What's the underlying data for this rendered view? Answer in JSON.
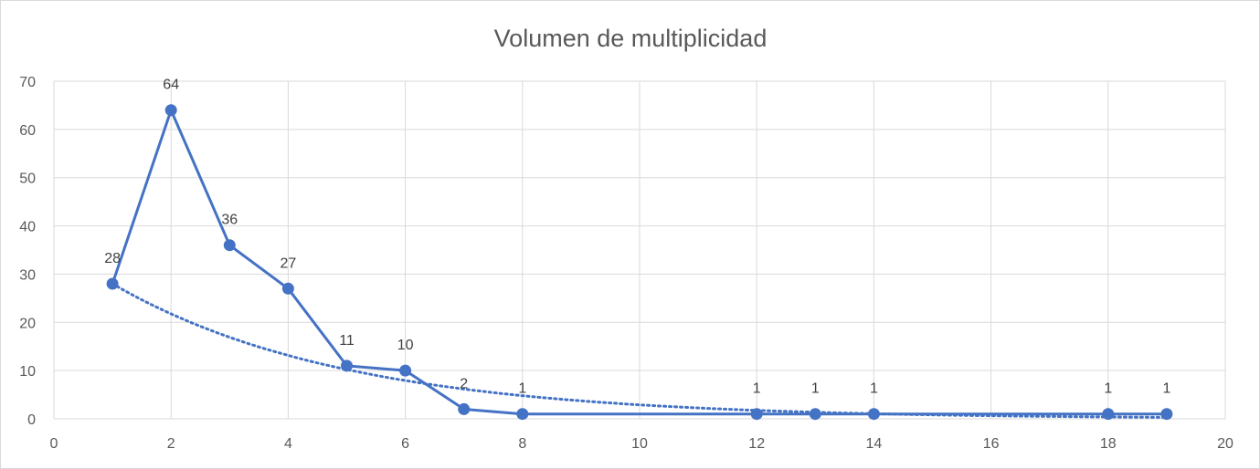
{
  "chart_data": {
    "type": "scatter",
    "title": "Volumen de multiplicidad",
    "xlabel": "",
    "ylabel": "",
    "xlim": [
      0,
      20
    ],
    "ylim": [
      0,
      70
    ],
    "x_ticks": [
      0,
      2,
      4,
      6,
      8,
      10,
      12,
      14,
      16,
      18,
      20
    ],
    "y_ticks": [
      0,
      10,
      20,
      30,
      40,
      50,
      60,
      70
    ],
    "grid": true,
    "legend": "none",
    "series": [
      {
        "style": "line-with-markers",
        "color": "#4472c4",
        "x": [
          1,
          2,
          3,
          4,
          5,
          6,
          7,
          8,
          12,
          13,
          14,
          18,
          19
        ],
        "y": [
          28,
          64,
          36,
          27,
          11,
          10,
          2,
          1,
          1,
          1,
          1,
          1,
          1
        ],
        "data_labels": [
          "28",
          "64",
          "36",
          "27",
          "11",
          "10",
          "2",
          "1",
          "1",
          "1",
          "1",
          "1",
          "1"
        ]
      }
    ],
    "trendline": {
      "type": "exponential",
      "style": "dotted",
      "color": "#4472c4",
      "x_range": [
        1,
        19
      ],
      "y_start": 28,
      "y_end": 0.3
    }
  }
}
